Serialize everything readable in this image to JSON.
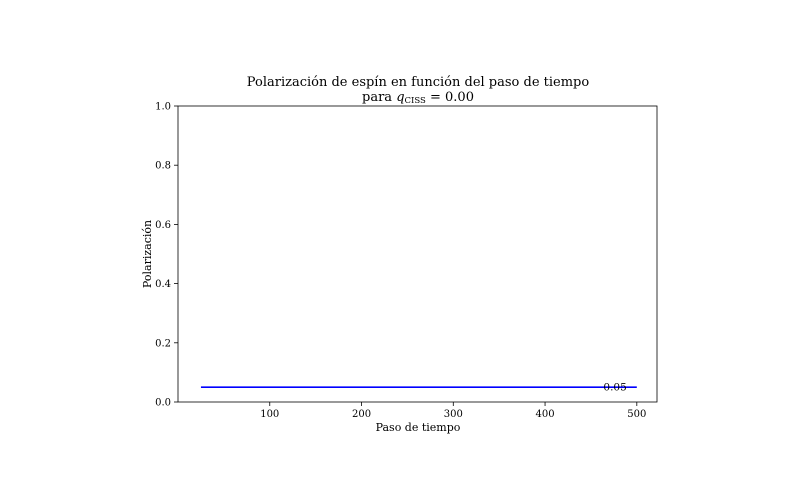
{
  "chart_data": {
    "type": "line",
    "title": "Polarización de espín en función del paso de tiempo",
    "subtitle_prefix": "para ",
    "subtitle_var": "q",
    "subtitle_sub": "CISS",
    "subtitle_suffix": " = 0.00",
    "xlabel": "Paso de tiempo",
    "ylabel": "Polarización",
    "xlim": [
      0,
      522
    ],
    "ylim": [
      0.0,
      1.0
    ],
    "xticks": [
      100,
      200,
      300,
      400,
      500
    ],
    "xtick_labels": [
      "100",
      "200",
      "300",
      "400",
      "500"
    ],
    "yticks": [
      0.0,
      0.2,
      0.4,
      0.6,
      0.8,
      1.0
    ],
    "ytick_labels": [
      "0.0",
      "0.2",
      "0.4",
      "0.6",
      "0.8",
      "1.0"
    ],
    "grid": false,
    "series": [
      {
        "color": "#0000ff",
        "x": [
          25,
          500
        ],
        "y": [
          0.05,
          0.05
        ]
      }
    ],
    "annotations": [
      {
        "text": "0.05",
        "x": 500,
        "y": 0.05
      }
    ]
  }
}
